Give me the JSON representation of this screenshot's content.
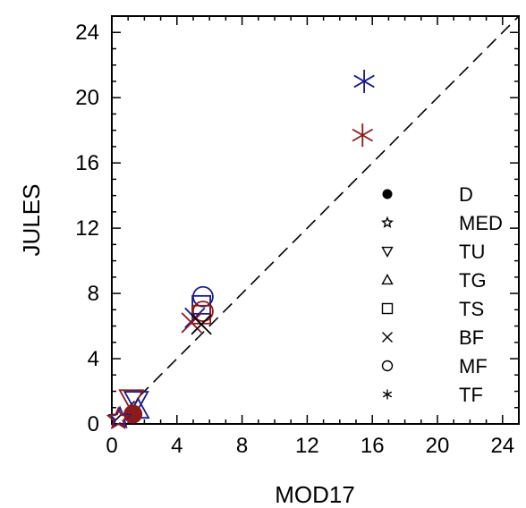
{
  "chart_data": {
    "type": "scatter",
    "title": "",
    "xlabel": "MOD17",
    "ylabel": "JULES",
    "xlim": [
      0,
      25
    ],
    "ylim": [
      0,
      25
    ],
    "x_ticks": [
      0,
      4,
      8,
      12,
      16,
      20,
      24
    ],
    "y_ticks": [
      0,
      4,
      8,
      12,
      16,
      20,
      24
    ],
    "minor_tick_step": 1,
    "grid": false,
    "reference_line": {
      "style": "dashed",
      "from": [
        0,
        0
      ],
      "to": [
        25,
        25
      ]
    },
    "legend_placement": "right",
    "legend": [
      {
        "label": "D",
        "marker": "filled-circle"
      },
      {
        "label": "MED",
        "marker": "star"
      },
      {
        "label": "TU",
        "marker": "triangle-down"
      },
      {
        "label": "TG",
        "marker": "triangle-up"
      },
      {
        "label": "TS",
        "marker": "square"
      },
      {
        "label": "BF",
        "marker": "x"
      },
      {
        "label": "MF",
        "marker": "circle"
      },
      {
        "label": "TF",
        "marker": "asterisk"
      }
    ],
    "series_colors": {
      "blue": "#1a1a8c",
      "red": "#8b1a1a"
    },
    "points": [
      {
        "x": 15.5,
        "y": 21.0,
        "marker": "asterisk",
        "color": "blue"
      },
      {
        "x": 15.4,
        "y": 17.7,
        "marker": "asterisk",
        "color": "red"
      },
      {
        "x": 5.6,
        "y": 7.8,
        "marker": "circle",
        "color": "blue"
      },
      {
        "x": 5.6,
        "y": 6.9,
        "marker": "circle",
        "color": "red"
      },
      {
        "x": 5.5,
        "y": 7.3,
        "marker": "square",
        "color": "blue"
      },
      {
        "x": 5.5,
        "y": 6.7,
        "marker": "square",
        "color": "red"
      },
      {
        "x": 5.1,
        "y": 6.5,
        "marker": "x",
        "color": "blue"
      },
      {
        "x": 4.9,
        "y": 6.2,
        "marker": "x",
        "color": "red"
      },
      {
        "x": 5.5,
        "y": 6.1,
        "marker": "x",
        "color": "black"
      },
      {
        "x": 1.5,
        "y": 1.4,
        "marker": "triangle-down",
        "color": "blue"
      },
      {
        "x": 1.2,
        "y": 1.5,
        "marker": "triangle-down",
        "color": "red"
      },
      {
        "x": 1.6,
        "y": 0.9,
        "marker": "triangle-up",
        "color": "blue"
      },
      {
        "x": 1.3,
        "y": 0.6,
        "marker": "filled-circle",
        "color": "red"
      },
      {
        "x": 0.5,
        "y": 0.35,
        "marker": "star",
        "color": "blue"
      },
      {
        "x": 0.4,
        "y": 0.3,
        "marker": "star",
        "color": "red"
      }
    ]
  }
}
